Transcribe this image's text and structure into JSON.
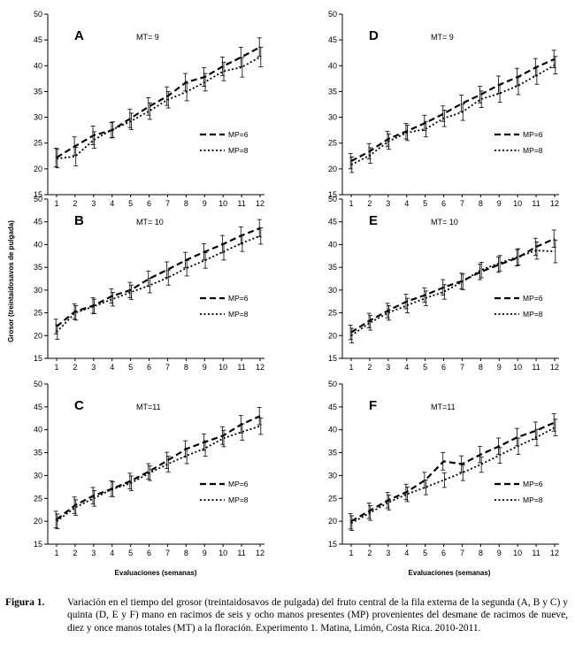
{
  "chart_data": [
    {
      "type": "line",
      "panel": "A",
      "annotation": "MT= 9",
      "x": [
        1,
        2,
        3,
        4,
        5,
        6,
        7,
        8,
        9,
        10,
        11,
        12
      ],
      "ylim": [
        15,
        50
      ],
      "yticks": [
        15,
        20,
        25,
        30,
        35,
        40,
        45,
        50
      ],
      "series": [
        {
          "name": "MP=6",
          "values": [
            22.2,
            24.4,
            26.5,
            27.5,
            29.8,
            32.1,
            34.1,
            36.8,
            37.8,
            39.9,
            41.7,
            43.6
          ],
          "error": [
            1.8,
            1.8,
            1.8,
            1.5,
            1.8,
            1.7,
            1.8,
            1.7,
            1.8,
            1.8,
            1.9,
            1.8
          ]
        },
        {
          "name": "MP=8",
          "values": [
            22.0,
            22.4,
            25.6,
            27.6,
            29.2,
            31.2,
            33.4,
            34.9,
            36.8,
            38.9,
            39.7,
            41.7
          ],
          "error": [
            1.8,
            1.8,
            1.6,
            1.5,
            1.6,
            1.6,
            1.6,
            1.7,
            1.7,
            1.8,
            1.9,
            1.9
          ]
        }
      ]
    },
    {
      "type": "line",
      "panel": "B",
      "annotation": "MT= 10",
      "x": [
        1,
        2,
        3,
        4,
        5,
        6,
        7,
        8,
        9,
        10,
        11,
        12
      ],
      "ylim": [
        15,
        50
      ],
      "yticks": [
        15,
        20,
        25,
        30,
        35,
        40,
        45,
        50
      ],
      "series": [
        {
          "name": "MP=6",
          "values": [
            22.0,
            25.3,
            26.6,
            28.7,
            30.0,
            32.5,
            34.5,
            36.6,
            38.4,
            40.1,
            42.0,
            43.6
          ],
          "error": [
            1.6,
            1.7,
            1.7,
            1.6,
            1.7,
            1.7,
            1.7,
            1.7,
            1.8,
            1.9,
            1.9,
            1.9
          ]
        },
        {
          "name": "MP=8",
          "values": [
            20.8,
            25.0,
            26.4,
            28.0,
            29.5,
            31.0,
            32.7,
            34.8,
            36.5,
            38.4,
            40.3,
            41.9
          ],
          "error": [
            1.6,
            1.6,
            1.6,
            1.5,
            1.6,
            1.6,
            1.6,
            1.7,
            1.7,
            1.8,
            1.8,
            1.8
          ]
        }
      ]
    },
    {
      "type": "line",
      "panel": "C",
      "annotation": "MT=11",
      "x": [
        1,
        2,
        3,
        4,
        5,
        6,
        7,
        8,
        9,
        10,
        11,
        12
      ],
      "ylim": [
        15,
        50
      ],
      "yticks": [
        15,
        20,
        25,
        30,
        35,
        40,
        45,
        50
      ],
      "series": [
        {
          "name": "MP=6",
          "values": [
            20.4,
            23.5,
            25.6,
            27.1,
            28.8,
            30.9,
            33.3,
            35.8,
            37.3,
            38.7,
            41.2,
            43.0
          ],
          "error": [
            1.8,
            1.8,
            1.8,
            1.7,
            1.7,
            1.7,
            1.8,
            1.8,
            1.8,
            1.9,
            1.9,
            1.9
          ]
        },
        {
          "name": "MP=8",
          "values": [
            20.0,
            23.0,
            25.0,
            27.0,
            28.3,
            30.5,
            32.5,
            34.3,
            35.9,
            38.1,
            39.5,
            40.8
          ],
          "error": [
            1.6,
            1.7,
            1.7,
            1.6,
            1.6,
            1.6,
            1.7,
            1.7,
            1.7,
            1.8,
            1.8,
            1.8
          ]
        }
      ]
    },
    {
      "type": "line",
      "panel": "D",
      "annotation": "MT= 9",
      "x": [
        1,
        2,
        3,
        4,
        5,
        6,
        7,
        8,
        9,
        10,
        11,
        12
      ],
      "ylim": [
        15,
        50
      ],
      "yticks": [
        15,
        20,
        25,
        30,
        35,
        40,
        45,
        50
      ],
      "series": [
        {
          "name": "MP=6",
          "values": [
            21.5,
            23.4,
            25.8,
            27.3,
            28.9,
            30.7,
            32.7,
            34.4,
            36.3,
            37.8,
            39.7,
            41.3
          ],
          "error": [
            1.5,
            1.5,
            1.5,
            1.5,
            1.5,
            1.5,
            1.6,
            1.6,
            1.7,
            1.7,
            1.7,
            1.7
          ]
        },
        {
          "name": "MP=8",
          "values": [
            20.8,
            22.6,
            25.3,
            27.0,
            27.7,
            29.8,
            31.0,
            33.5,
            34.6,
            36.1,
            38.1,
            40.1
          ],
          "error": [
            1.5,
            1.5,
            1.5,
            1.5,
            1.5,
            1.6,
            1.6,
            1.6,
            1.7,
            1.7,
            1.7,
            1.7
          ]
        }
      ]
    },
    {
      "type": "line",
      "panel": "E",
      "annotation": "MT= 10",
      "x": [
        1,
        2,
        3,
        4,
        5,
        6,
        7,
        8,
        9,
        10,
        11,
        12
      ],
      "ylim": [
        15,
        50
      ],
      "yticks": [
        15,
        20,
        25,
        30,
        35,
        40,
        45,
        50
      ],
      "series": [
        {
          "name": "MP=6",
          "values": [
            20.7,
            23.3,
            25.5,
            27.5,
            28.9,
            30.6,
            32.0,
            34.0,
            35.6,
            37.1,
            39.5,
            41.3
          ],
          "error": [
            1.6,
            1.6,
            1.6,
            1.6,
            1.6,
            1.7,
            1.7,
            1.7,
            1.7,
            1.8,
            1.9,
            1.9
          ]
        },
        {
          "name": "MP=8",
          "values": [
            20.0,
            22.8,
            25.0,
            26.6,
            28.2,
            29.6,
            31.8,
            34.4,
            35.9,
            37.3,
            38.7,
            38.5
          ],
          "error": [
            1.6,
            1.6,
            1.6,
            1.6,
            1.6,
            1.6,
            1.7,
            1.7,
            1.7,
            1.8,
            1.9,
            2.5
          ]
        }
      ]
    },
    {
      "type": "line",
      "panel": "F",
      "annotation": "MT=11",
      "x": [
        1,
        2,
        3,
        4,
        5,
        6,
        7,
        8,
        9,
        10,
        11,
        12
      ],
      "ylim": [
        15,
        50
      ],
      "yticks": [
        15,
        20,
        25,
        30,
        35,
        40,
        45,
        50
      ],
      "series": [
        {
          "name": "MP=6",
          "values": [
            20.0,
            22.3,
            24.6,
            26.4,
            29.0,
            33.1,
            32.5,
            34.6,
            36.4,
            38.4,
            39.8,
            41.6
          ],
          "error": [
            1.7,
            1.7,
            1.7,
            1.7,
            1.7,
            1.9,
            1.8,
            1.8,
            1.8,
            1.9,
            1.9,
            1.9
          ]
        },
        {
          "name": "MP=8",
          "values": [
            19.6,
            21.8,
            24.1,
            25.9,
            27.4,
            29.0,
            30.6,
            32.4,
            34.4,
            36.4,
            38.3,
            40.5
          ],
          "error": [
            1.6,
            1.6,
            1.6,
            1.6,
            1.6,
            1.6,
            1.7,
            1.7,
            1.7,
            1.8,
            1.8,
            1.8
          ]
        }
      ]
    }
  ],
  "ylabel": "Grosor (treintaidosavos de pulgada)",
  "xlabel": "Evaluaciones  (semanas)",
  "caption": {
    "label": "Figura 1.",
    "text": "Variación en el tiempo del grosor (treintaidosavos de pulgada) del fruto central de la fila externa de la segunda (A, B y C)  y quinta (D, E y F) mano en racimos de seis y ocho manos presentes (MP) provenientes del desmane de racimos de nueve, diez y once manos totales (MT) a la floración. Experimento 1. Matina, Limón, Costa Rica. 2010-2011."
  }
}
